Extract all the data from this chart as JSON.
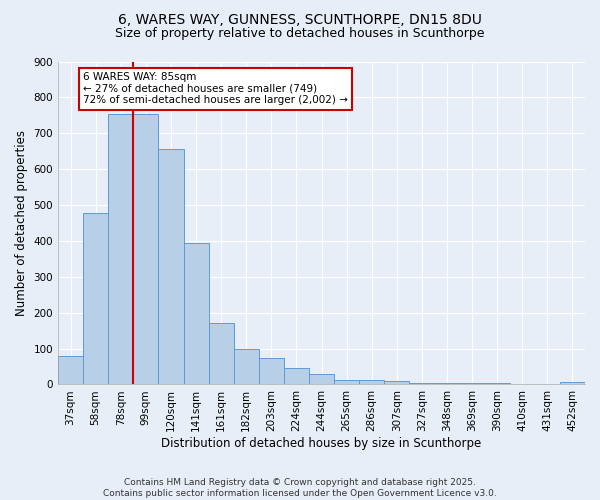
{
  "title": "6, WARES WAY, GUNNESS, SCUNTHORPE, DN15 8DU",
  "subtitle": "Size of property relative to detached houses in Scunthorpe",
  "xlabel": "Distribution of detached houses by size in Scunthorpe",
  "ylabel": "Number of detached properties",
  "categories": [
    "37sqm",
    "58sqm",
    "78sqm",
    "99sqm",
    "120sqm",
    "141sqm",
    "161sqm",
    "182sqm",
    "203sqm",
    "224sqm",
    "244sqm",
    "265sqm",
    "286sqm",
    "307sqm",
    "327sqm",
    "348sqm",
    "369sqm",
    "390sqm",
    "410sqm",
    "431sqm",
    "452sqm"
  ],
  "values": [
    78,
    478,
    755,
    755,
    655,
    395,
    172,
    100,
    75,
    45,
    30,
    13,
    13,
    10,
    5,
    5,
    3,
    3,
    2,
    2,
    8
  ],
  "bar_color": "#b8cfe8",
  "bar_edge_color": "#5b9bd5",
  "red_line_index": 2,
  "annotation_text": "6 WARES WAY: 85sqm\n← 27% of detached houses are smaller (749)\n72% of semi-detached houses are larger (2,002) →",
  "annotation_box_color": "#ffffff",
  "annotation_box_edge": "#cc0000",
  "ylim": [
    0,
    900
  ],
  "yticks": [
    0,
    100,
    200,
    300,
    400,
    500,
    600,
    700,
    800,
    900
  ],
  "footer": "Contains HM Land Registry data © Crown copyright and database right 2025.\nContains public sector information licensed under the Open Government Licence v3.0.",
  "bg_color": "#e8eef8",
  "grid_color": "#ffffff",
  "title_fontsize": 10,
  "subtitle_fontsize": 9,
  "axis_label_fontsize": 8.5,
  "tick_fontsize": 7.5,
  "footer_fontsize": 6.5,
  "annotation_fontsize": 7.5
}
